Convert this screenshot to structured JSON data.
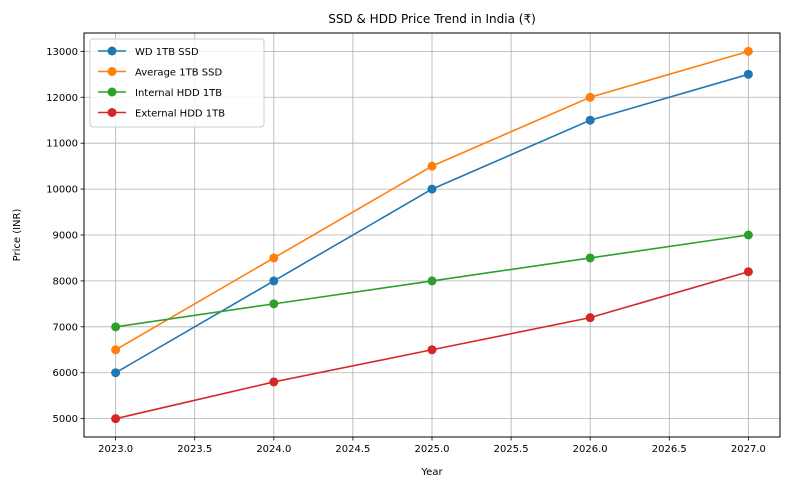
{
  "chart_data": {
    "type": "line",
    "title": "SSD & HDD Price Trend in India (₹)",
    "xlabel": "Year",
    "ylabel": "Price (INR)",
    "x": [
      2023,
      2024,
      2025,
      2026,
      2027
    ],
    "xlim": [
      2022.8,
      2027.2
    ],
    "ylim": [
      4600,
      13400
    ],
    "xticks": [
      2023.0,
      2023.5,
      2024.0,
      2024.5,
      2025.0,
      2025.5,
      2026.0,
      2026.5,
      2027.0
    ],
    "xtick_labels": [
      "2023.0",
      "2023.5",
      "2024.0",
      "2024.5",
      "2025.0",
      "2025.5",
      "2026.0",
      "2026.5",
      "2027.0"
    ],
    "yticks": [
      5000,
      6000,
      7000,
      8000,
      9000,
      10000,
      11000,
      12000,
      13000
    ],
    "ytick_labels": [
      "5000",
      "6000",
      "7000",
      "8000",
      "9000",
      "10000",
      "11000",
      "12000",
      "13000"
    ],
    "grid": true,
    "legend_position": "top-left",
    "series": [
      {
        "name": "WD 1TB SSD",
        "color": "#1f77b4",
        "marker": "circle",
        "values": [
          6000,
          8000,
          10000,
          11500,
          12500
        ]
      },
      {
        "name": "Average 1TB SSD",
        "color": "#ff7f0e",
        "marker": "circle",
        "values": [
          6500,
          8500,
          10500,
          12000,
          13000
        ]
      },
      {
        "name": "Internal HDD 1TB",
        "color": "#2ca02c",
        "marker": "circle",
        "values": [
          7000,
          7500,
          8000,
          8500,
          9000
        ]
      },
      {
        "name": "External HDD 1TB",
        "color": "#d62728",
        "marker": "circle",
        "values": [
          5000,
          5800,
          6500,
          7200,
          8200
        ]
      }
    ]
  }
}
